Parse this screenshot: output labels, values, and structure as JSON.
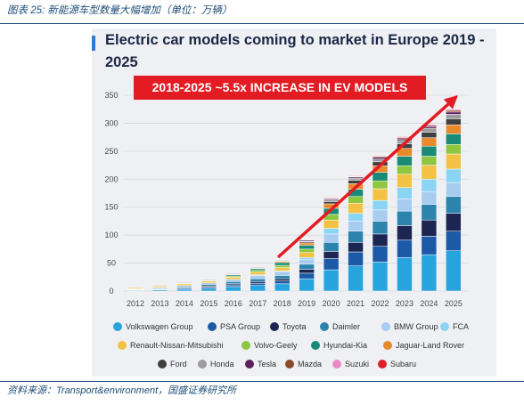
{
  "caption": {
    "text": "图表 25: 新能源车型数量大幅增加（单位：万辆）"
  },
  "source": {
    "text": "资料来源：Transport&environment，国盛证券研究所"
  },
  "colors": {
    "caption": "#1f4e79",
    "title": "#1b2745",
    "banner": "#e31b23",
    "arrow": "#e31b23",
    "panel_background": "#eef0f3"
  },
  "chart_data": {
    "type": "bar",
    "stacked": true,
    "title": "Electric car models coming to market in Europe 2019 - 2025",
    "annotation": "2018-2025 ~5.5x INCREASE IN EV MODELS",
    "categories": [
      "2012",
      "2013",
      "2014",
      "2015",
      "2016",
      "2017",
      "2018",
      "2019",
      "2020",
      "2021",
      "2022",
      "2023",
      "2024",
      "2025"
    ],
    "ylim": [
      0,
      350
    ],
    "yticks": [
      0,
      50,
      100,
      150,
      200,
      250,
      300,
      350
    ],
    "grid": true,
    "legend_position": "bottom",
    "series": [
      {
        "name": "Volkswagen Group",
        "color": "#27a3dd",
        "values": [
          1,
          2,
          3,
          5,
          8,
          10,
          13,
          22,
          38,
          45,
          52,
          60,
          65,
          72
        ]
      },
      {
        "name": "PSA Group",
        "color": "#1c5aa8",
        "values": [
          1,
          1,
          2,
          2,
          3,
          4,
          5,
          10,
          20,
          25,
          28,
          31,
          33,
          35
        ]
      },
      {
        "name": "Toyota",
        "color": "#1d2552",
        "values": [
          0,
          1,
          1,
          2,
          2,
          3,
          4,
          7,
          13,
          17,
          22,
          26,
          29,
          32
        ]
      },
      {
        "name": "Daimler",
        "color": "#2c84ad",
        "values": [
          1,
          1,
          2,
          3,
          4,
          5,
          6,
          9,
          16,
          20,
          23,
          26,
          28,
          30
        ]
      },
      {
        "name": "BMW Group",
        "color": "#a8cbf0",
        "values": [
          1,
          2,
          2,
          3,
          4,
          6,
          7,
          9,
          15,
          18,
          20,
          22,
          23,
          25
        ]
      },
      {
        "name": "FCA",
        "color": "#8ad4f4",
        "values": [
          0,
          0,
          0,
          0,
          0,
          1,
          1,
          3,
          10,
          14,
          17,
          20,
          22,
          24
        ]
      },
      {
        "name": "Renault-Nissan-Mitsubishi",
        "color": "#f3c244",
        "values": [
          2,
          2,
          3,
          3,
          4,
          5,
          6,
          9,
          15,
          18,
          21,
          24,
          25,
          27
        ]
      },
      {
        "name": "Volvo-Geely",
        "color": "#8dc63f",
        "values": [
          0,
          1,
          1,
          1,
          2,
          3,
          4,
          6,
          10,
          12,
          14,
          15,
          16,
          17
        ]
      },
      {
        "name": "Hyundai-Kia",
        "color": "#1a8a78",
        "values": [
          0,
          0,
          1,
          1,
          2,
          3,
          5,
          7,
          11,
          13,
          15,
          17,
          18,
          19
        ]
      },
      {
        "name": "Jaguar-Land Rover",
        "color": "#e9892b",
        "values": [
          0,
          0,
          0,
          0,
          1,
          1,
          2,
          4,
          8,
          10,
          12,
          14,
          15,
          16
        ]
      },
      {
        "name": "Ford",
        "color": "#3f3f3f",
        "values": [
          0,
          1,
          1,
          1,
          1,
          1,
          1,
          2,
          4,
          6,
          7,
          8,
          10,
          11
        ]
      },
      {
        "name": "Honda",
        "color": "#9c9c9c",
        "values": [
          0,
          0,
          0,
          0,
          0,
          0,
          1,
          1,
          3,
          4,
          5,
          6,
          7,
          8
        ]
      },
      {
        "name": "Tesla",
        "color": "#5c1f5e",
        "values": [
          0,
          0,
          0,
          1,
          1,
          1,
          1,
          2,
          2,
          2,
          3,
          3,
          3,
          4
        ]
      },
      {
        "name": "Mazda",
        "color": "#8b4a2b",
        "values": [
          0,
          0,
          0,
          0,
          0,
          0,
          0,
          1,
          1,
          1,
          2,
          2,
          2,
          3
        ]
      },
      {
        "name": "Suzuki",
        "color": "#e98bc7",
        "values": [
          0,
          0,
          0,
          0,
          0,
          0,
          0,
          0,
          1,
          1,
          1,
          2,
          2,
          2
        ]
      },
      {
        "name": "Subaru",
        "color": "#d8232a",
        "values": [
          0,
          0,
          0,
          0,
          0,
          0,
          0,
          0,
          1,
          1,
          1,
          1,
          1,
          1
        ]
      }
    ]
  }
}
